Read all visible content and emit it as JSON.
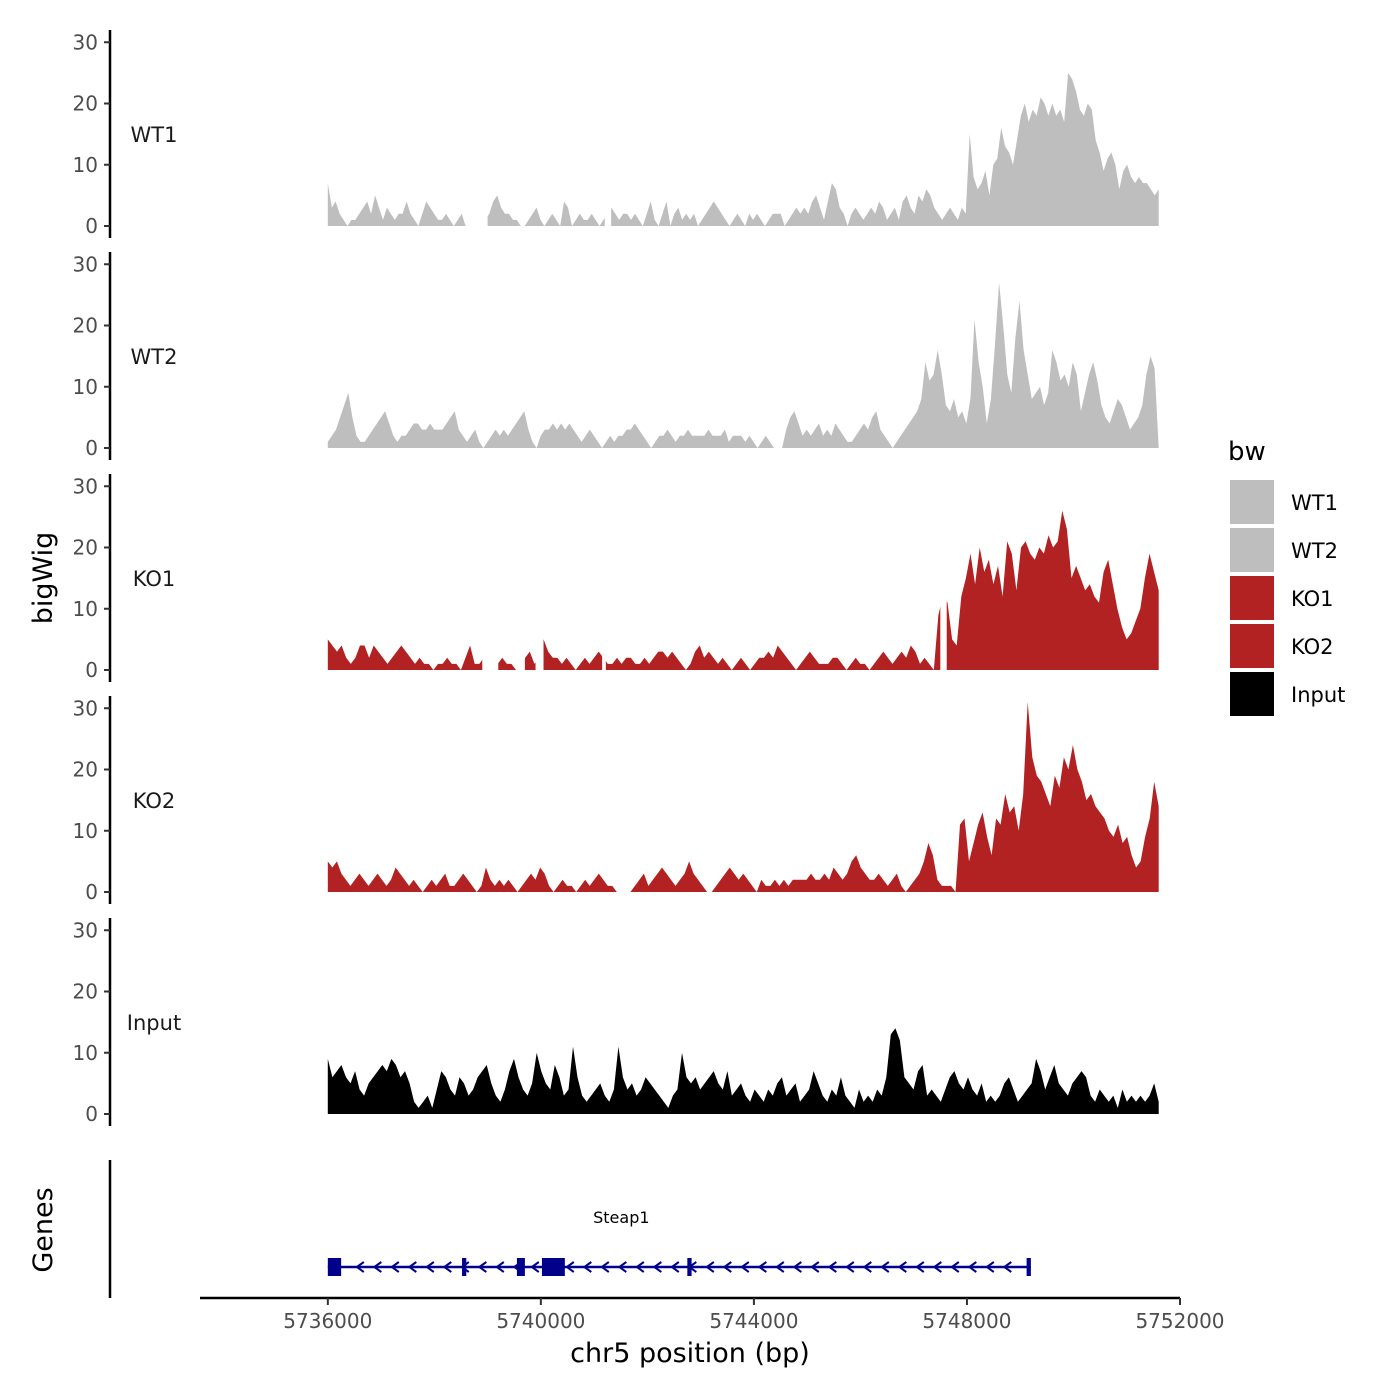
{
  "chart_data": {
    "type": "area",
    "title": "",
    "xlabel": "chr5 position (bp)",
    "ylabel": "bigWig",
    "genes_label": "Genes",
    "xlim": [
      5733600,
      5752000
    ],
    "ylim": [
      0,
      32
    ],
    "x_ticks": [
      5736000,
      5740000,
      5744000,
      5748000,
      5752000
    ],
    "x_tick_labels": [
      "5736000",
      "5740000",
      "5744000",
      "5748000",
      "5752000"
    ],
    "y_ticks": [
      0,
      10,
      20,
      30
    ],
    "y_tick_labels": [
      "0",
      "10",
      "20",
      "30"
    ],
    "data_range": [
      5736000,
      5751600
    ],
    "legend": {
      "title": "bw",
      "position": "right",
      "entries": [
        {
          "label": "WT1",
          "color": "#bebebe"
        },
        {
          "label": "WT2",
          "color": "#bebebe"
        },
        {
          "label": "KO1",
          "color": "#b22222"
        },
        {
          "label": "KO2",
          "color": "#b22222"
        },
        {
          "label": "Input",
          "color": "#000000"
        }
      ]
    },
    "series": [
      {
        "name": "WT1",
        "color": "#bebebe",
        "values": [
          7,
          3,
          4,
          2,
          1,
          0,
          1,
          1,
          2,
          3,
          4,
          2,
          5,
          3,
          1,
          3,
          2,
          1,
          2,
          2,
          4,
          2,
          1,
          0,
          2,
          4,
          3,
          2,
          1,
          1,
          2,
          1,
          0,
          1,
          2,
          0,
          0,
          0,
          0,
          0,
          1,
          2,
          4,
          5,
          3,
          2,
          2,
          1,
          1,
          0,
          0,
          1,
          2,
          3,
          1,
          0,
          1,
          2,
          1,
          0,
          4,
          3,
          0,
          1,
          2,
          1,
          1,
          2,
          1,
          0,
          1,
          2,
          3,
          2,
          1,
          2,
          2,
          1,
          2,
          1,
          0,
          2,
          4,
          1,
          0,
          2,
          4,
          0,
          2,
          3,
          1,
          2,
          1,
          2,
          0,
          1,
          2,
          3,
          4,
          3,
          2,
          1,
          0,
          1,
          2,
          1,
          0,
          2,
          1,
          2,
          1,
          0,
          1,
          2,
          2,
          2,
          0,
          1,
          2,
          3,
          2,
          3,
          2,
          4,
          5,
          3,
          1,
          4,
          7,
          6,
          3,
          2,
          0,
          2,
          3,
          2,
          1,
          2,
          3,
          2,
          4,
          3,
          1,
          2,
          3,
          1,
          4,
          5,
          3,
          2,
          5,
          4,
          6,
          5,
          3,
          2,
          1,
          2,
          3,
          2,
          1,
          3,
          2,
          15,
          8,
          6,
          7,
          9,
          5,
          10,
          11,
          16,
          13,
          12,
          10,
          14,
          18,
          20,
          17,
          19,
          18,
          21,
          20,
          18,
          20,
          18,
          19,
          17,
          25,
          24,
          22,
          19,
          18,
          20,
          19,
          14,
          12,
          9,
          11,
          12,
          10,
          6,
          9,
          10,
          8,
          7,
          8,
          7,
          7,
          6,
          5,
          6
        ],
        "gaps": [
          [
            5738600,
            5739000
          ],
          [
            5741200,
            5741320
          ]
        ]
      },
      {
        "name": "WT2",
        "color": "#bebebe",
        "values": [
          1,
          2,
          3,
          5,
          7,
          9,
          5,
          2,
          1,
          1,
          2,
          3,
          4,
          5,
          6,
          4,
          2,
          1,
          2,
          2,
          3,
          4,
          4,
          3,
          3,
          4,
          3,
          3,
          3,
          4,
          5,
          6,
          3,
          2,
          1,
          2,
          3,
          1,
          0,
          1,
          2,
          3,
          2,
          3,
          2,
          3,
          4,
          5,
          6,
          3,
          1,
          0,
          2,
          3,
          3,
          4,
          3,
          4,
          3,
          4,
          3,
          2,
          1,
          2,
          3,
          2,
          1,
          0,
          1,
          2,
          1,
          2,
          2,
          3,
          3,
          4,
          3,
          2,
          1,
          0,
          1,
          2,
          2,
          3,
          2,
          1,
          2,
          2,
          3,
          2,
          2,
          2,
          2,
          3,
          2,
          2,
          2,
          3,
          1,
          2,
          2,
          2,
          1,
          2,
          1,
          0,
          1,
          2,
          1,
          0,
          0,
          0,
          3,
          5,
          6,
          4,
          2,
          3,
          2,
          3,
          4,
          2,
          3,
          2,
          4,
          3,
          2,
          1,
          1,
          2,
          3,
          4,
          3,
          5,
          6,
          3,
          2,
          1,
          0,
          1,
          2,
          3,
          4,
          5,
          6,
          8,
          14,
          11,
          12,
          16,
          12,
          7,
          6,
          8,
          5,
          6,
          4,
          8,
          21,
          14,
          10,
          4,
          8,
          17,
          27,
          20,
          12,
          9,
          18,
          24,
          16,
          12,
          8,
          9,
          10,
          7,
          9,
          16,
          14,
          11,
          12,
          10,
          14,
          12,
          6,
          9,
          12,
          14,
          11,
          7,
          5,
          4,
          6,
          8,
          7,
          5,
          3,
          4,
          5,
          7,
          12,
          15,
          13,
          0
        ]
      },
      {
        "name": "KO1",
        "color": "#b22222",
        "values": [
          5,
          4,
          3,
          4,
          2,
          1,
          2,
          4,
          4,
          2,
          4,
          3,
          2,
          1,
          2,
          3,
          4,
          3,
          2,
          1,
          2,
          1,
          1,
          0,
          1,
          1,
          2,
          1,
          1,
          0,
          2,
          4,
          1,
          1,
          2,
          1,
          0,
          1,
          2,
          1,
          1,
          0,
          0,
          2,
          3,
          1,
          2,
          5,
          3,
          2,
          2,
          1,
          2,
          1,
          0,
          1,
          2,
          1,
          2,
          3,
          2,
          1,
          1,
          2,
          1,
          2,
          2,
          1,
          1,
          2,
          1,
          2,
          3,
          3,
          2,
          3,
          2,
          1,
          0,
          1,
          3,
          4,
          2,
          3,
          2,
          1,
          2,
          1,
          0,
          1,
          2,
          1,
          0,
          1,
          2,
          2,
          3,
          2,
          4,
          3,
          2,
          1,
          0,
          1,
          2,
          3,
          2,
          1,
          1,
          1,
          2,
          2,
          1,
          0,
          1,
          2,
          1,
          1,
          0,
          1,
          2,
          3,
          2,
          1,
          2,
          3,
          2,
          4,
          3,
          1,
          2,
          1,
          0,
          9,
          12,
          11,
          5,
          4,
          12,
          15,
          19,
          14,
          20,
          16,
          18,
          14,
          17,
          12,
          21,
          19,
          13,
          20,
          21,
          19,
          18,
          20,
          19,
          22,
          20,
          21,
          26,
          23,
          15,
          17,
          15,
          13,
          14,
          12,
          11,
          16,
          18,
          14,
          10,
          7,
          5,
          6,
          8,
          10,
          15,
          19,
          16,
          13
        ],
        "gaps": [
          [
            5738900,
            5739200
          ],
          [
            5739600,
            5739700
          ],
          [
            5739900,
            5740050
          ],
          [
            5741150,
            5741220
          ],
          [
            5747500,
            5747620
          ]
        ]
      },
      {
        "name": "KO2",
        "color": "#b22222",
        "values": [
          5,
          4,
          5,
          3,
          2,
          1,
          2,
          3,
          2,
          1,
          2,
          3,
          2,
          1,
          2,
          4,
          3,
          2,
          1,
          2,
          1,
          0,
          1,
          2,
          1,
          2,
          3,
          1,
          1,
          2,
          3,
          2,
          1,
          0,
          1,
          4,
          2,
          1,
          2,
          1,
          2,
          1,
          0,
          1,
          2,
          3,
          2,
          4,
          3,
          1,
          0,
          1,
          2,
          1,
          1,
          0,
          1,
          2,
          1,
          2,
          3,
          2,
          1,
          1,
          0,
          0,
          0,
          0,
          1,
          2,
          3,
          1,
          2,
          3,
          4,
          3,
          2,
          1,
          2,
          3,
          5,
          3,
          2,
          1,
          0,
          0,
          1,
          2,
          3,
          4,
          3,
          2,
          3,
          2,
          1,
          0,
          2,
          1,
          1,
          2,
          1,
          2,
          1,
          2,
          2,
          2,
          2,
          3,
          2,
          2,
          3,
          2,
          4,
          3,
          2,
          3,
          5,
          6,
          4,
          3,
          2,
          2,
          3,
          2,
          1,
          2,
          3,
          1,
          0,
          1,
          2,
          3,
          5,
          8,
          6,
          2,
          1,
          1,
          1,
          0,
          11,
          12,
          5,
          8,
          11,
          13,
          9,
          6,
          12,
          11,
          16,
          13,
          14,
          10,
          16,
          31,
          22,
          19,
          18,
          16,
          14,
          19,
          17,
          22,
          20,
          24,
          20,
          18,
          15,
          16,
          14,
          13,
          12,
          10,
          9,
          11,
          8,
          9,
          6,
          4,
          5,
          9,
          12,
          18,
          14
        ]
      },
      {
        "name": "Input",
        "color": "#000000",
        "values": [
          9,
          6,
          7,
          8,
          6,
          5,
          7,
          4,
          3,
          5,
          6,
          7,
          8,
          7,
          9,
          8,
          6,
          7,
          5,
          2,
          1,
          2,
          3,
          1,
          4,
          7,
          6,
          4,
          3,
          6,
          5,
          3,
          4,
          6,
          7,
          8,
          5,
          3,
          2,
          4,
          7,
          9,
          6,
          4,
          3,
          5,
          10,
          7,
          5,
          4,
          8,
          6,
          3,
          4,
          11,
          6,
          3,
          2,
          3,
          4,
          5,
          3,
          2,
          4,
          11,
          6,
          4,
          5,
          3,
          4,
          6,
          5,
          4,
          3,
          2,
          1,
          3,
          4,
          10,
          6,
          5,
          6,
          4,
          5,
          6,
          7,
          5,
          4,
          7,
          3,
          4,
          5,
          3,
          2,
          4,
          3,
          2,
          4,
          3,
          5,
          6,
          3,
          4,
          5,
          2,
          3,
          4,
          7,
          5,
          3,
          2,
          4,
          3,
          6,
          3,
          2,
          1,
          4,
          2,
          3,
          2,
          4,
          3,
          6,
          13,
          14,
          12,
          6,
          5,
          4,
          7,
          8,
          3,
          4,
          3,
          2,
          4,
          6,
          7,
          5,
          4,
          6,
          4,
          3,
          5,
          2,
          3,
          2,
          3,
          5,
          6,
          4,
          2,
          3,
          4,
          5,
          9,
          7,
          4,
          6,
          8,
          5,
          4,
          3,
          5,
          6,
          7,
          6,
          3,
          2,
          4,
          3,
          2,
          3,
          1,
          4,
          2,
          3,
          2,
          3,
          2,
          3,
          5,
          2
        ]
      }
    ],
    "genes": [
      {
        "name": "Steap1",
        "strand": "-",
        "start": 5736000,
        "end": 5749200,
        "exons": [
          [
            5736000,
            5736250
          ],
          [
            5738520,
            5738600
          ],
          [
            5739550,
            5739700
          ],
          [
            5740020,
            5740450
          ],
          [
            5742750,
            5742830
          ],
          [
            5749120,
            5749200
          ]
        ]
      }
    ]
  }
}
